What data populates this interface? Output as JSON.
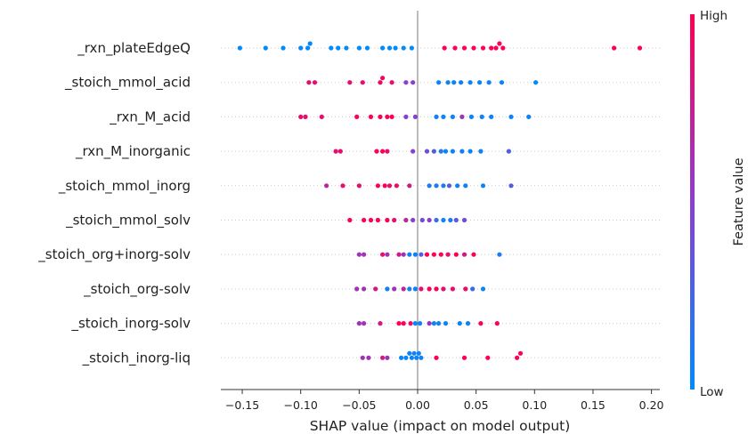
{
  "chart_data": {
    "type": "scatter",
    "subtype": "shap-beeswarm",
    "xlabel": "SHAP value (impact on model output)",
    "xlim": [
      -0.17,
      0.205
    ],
    "xticks": [
      -0.15,
      -0.1,
      -0.05,
      0.0,
      0.05,
      0.1,
      0.15,
      0.2
    ],
    "xtick_labels": [
      "−0.15",
      "−0.10",
      "−0.05",
      "0.00",
      "0.05",
      "0.10",
      "0.15",
      "0.20"
    ],
    "grid": false,
    "zero_line": true,
    "colorbar": {
      "title": "Feature value",
      "high_label": "High",
      "low_label": "Low",
      "high_color": "#ff0052",
      "low_color": "#008bfb"
    },
    "features": [
      {
        "name": "_rxn_plateEdgeQ",
        "points": [
          [
            -0.152,
            0.0
          ],
          [
            -0.13,
            0.0
          ],
          [
            -0.115,
            0.0
          ],
          [
            -0.1,
            0.0
          ],
          [
            -0.094,
            0.0
          ],
          [
            -0.092,
            0.0
          ],
          [
            -0.074,
            0.0
          ],
          [
            -0.068,
            0.0
          ],
          [
            -0.061,
            0.0
          ],
          [
            -0.05,
            0.0
          ],
          [
            -0.043,
            0.0
          ],
          [
            -0.03,
            0.0
          ],
          [
            -0.024,
            0.0
          ],
          [
            -0.019,
            0.0
          ],
          [
            -0.012,
            0.0
          ],
          [
            -0.005,
            0.0
          ],
          [
            0.023,
            1.0
          ],
          [
            0.032,
            1.0
          ],
          [
            0.04,
            1.0
          ],
          [
            0.048,
            1.0
          ],
          [
            0.056,
            1.0
          ],
          [
            0.063,
            1.0
          ],
          [
            0.067,
            1.0
          ],
          [
            0.07,
            1.0
          ],
          [
            0.073,
            1.0
          ],
          [
            0.168,
            1.0
          ],
          [
            0.19,
            1.0
          ]
        ]
      },
      {
        "name": "_stoich_mmol_acid",
        "points": [
          [
            -0.093,
            0.9
          ],
          [
            -0.088,
            0.9
          ],
          [
            -0.058,
            0.9
          ],
          [
            -0.047,
            0.9
          ],
          [
            -0.032,
            0.95
          ],
          [
            -0.03,
            0.95
          ],
          [
            -0.022,
            0.9
          ],
          [
            -0.01,
            0.5
          ],
          [
            -0.004,
            0.5
          ],
          [
            0.018,
            0.05
          ],
          [
            0.026,
            0.05
          ],
          [
            0.031,
            0.05
          ],
          [
            0.037,
            0.05
          ],
          [
            0.045,
            0.05
          ],
          [
            0.053,
            0.05
          ],
          [
            0.061,
            0.05
          ],
          [
            0.072,
            0.05
          ],
          [
            0.101,
            0.0
          ]
        ]
      },
      {
        "name": "_rxn_M_acid",
        "points": [
          [
            -0.1,
            0.9
          ],
          [
            -0.096,
            0.9
          ],
          [
            -0.082,
            0.9
          ],
          [
            -0.052,
            1.0
          ],
          [
            -0.04,
            1.0
          ],
          [
            -0.032,
            1.0
          ],
          [
            -0.026,
            1.0
          ],
          [
            -0.022,
            1.0
          ],
          [
            -0.01,
            0.5
          ],
          [
            -0.002,
            0.5
          ],
          [
            0.016,
            0.05
          ],
          [
            0.022,
            0.05
          ],
          [
            0.03,
            0.05
          ],
          [
            0.038,
            0.6
          ],
          [
            0.046,
            0.05
          ],
          [
            0.055,
            0.05
          ],
          [
            0.063,
            0.05
          ],
          [
            0.08,
            0.05
          ],
          [
            0.095,
            0.05
          ]
        ]
      },
      {
        "name": "_rxn_M_inorganic",
        "points": [
          [
            -0.07,
            0.9
          ],
          [
            -0.066,
            0.9
          ],
          [
            -0.035,
            1.0
          ],
          [
            -0.03,
            1.0
          ],
          [
            -0.026,
            0.9
          ],
          [
            -0.004,
            0.5
          ],
          [
            0.008,
            0.4
          ],
          [
            0.014,
            0.3
          ],
          [
            0.02,
            0.1
          ],
          [
            0.024,
            0.05
          ],
          [
            0.03,
            0.05
          ],
          [
            0.038,
            0.05
          ],
          [
            0.045,
            0.05
          ],
          [
            0.054,
            0.05
          ],
          [
            0.078,
            0.3
          ]
        ]
      },
      {
        "name": "_stoich_mmol_inorg",
        "points": [
          [
            -0.078,
            0.7
          ],
          [
            -0.064,
            0.9
          ],
          [
            -0.05,
            0.9
          ],
          [
            -0.034,
            1.0
          ],
          [
            -0.028,
            1.0
          ],
          [
            -0.024,
            0.9
          ],
          [
            -0.018,
            0.9
          ],
          [
            -0.007,
            0.8
          ],
          [
            0.01,
            0.1
          ],
          [
            0.016,
            0.1
          ],
          [
            0.022,
            0.1
          ],
          [
            0.027,
            0.3
          ],
          [
            0.034,
            0.05
          ],
          [
            0.041,
            0.05
          ],
          [
            0.056,
            0.05
          ],
          [
            0.08,
            0.3
          ]
        ]
      },
      {
        "name": "_stoich_mmol_solv",
        "points": [
          [
            -0.058,
            1.0
          ],
          [
            -0.046,
            1.0
          ],
          [
            -0.04,
            1.0
          ],
          [
            -0.034,
            1.0
          ],
          [
            -0.026,
            1.0
          ],
          [
            -0.02,
            0.9
          ],
          [
            -0.01,
            0.7
          ],
          [
            -0.004,
            0.5
          ],
          [
            0.004,
            0.4
          ],
          [
            0.01,
            0.5
          ],
          [
            0.016,
            0.2
          ],
          [
            0.022,
            0.05
          ],
          [
            0.028,
            0.1
          ],
          [
            0.033,
            0.3
          ],
          [
            0.04,
            0.4
          ]
        ]
      },
      {
        "name": "_stoich_org+inorg-solv",
        "points": [
          [
            -0.05,
            0.6
          ],
          [
            -0.046,
            0.6
          ],
          [
            -0.03,
            0.9
          ],
          [
            -0.026,
            0.6
          ],
          [
            -0.016,
            0.8
          ],
          [
            -0.012,
            0.6
          ],
          [
            -0.007,
            0.05
          ],
          [
            -0.002,
            0.05
          ],
          [
            0.003,
            0.3
          ],
          [
            0.008,
            1.0
          ],
          [
            0.014,
            1.0
          ],
          [
            0.02,
            1.0
          ],
          [
            0.026,
            0.9
          ],
          [
            0.033,
            1.0
          ],
          [
            0.04,
            0.8
          ],
          [
            0.048,
            1.0
          ],
          [
            0.07,
            0.1
          ]
        ]
      },
      {
        "name": "_stoich_org-solv",
        "points": [
          [
            -0.052,
            0.6
          ],
          [
            -0.046,
            0.6
          ],
          [
            -0.036,
            0.8
          ],
          [
            -0.026,
            0.05
          ],
          [
            -0.02,
            0.6
          ],
          [
            -0.012,
            0.7
          ],
          [
            -0.007,
            0.05
          ],
          [
            -0.002,
            0.05
          ],
          [
            0.003,
            0.9
          ],
          [
            0.01,
            1.0
          ],
          [
            0.016,
            1.0
          ],
          [
            0.022,
            0.9
          ],
          [
            0.03,
            0.9
          ],
          [
            0.041,
            0.9
          ],
          [
            0.047,
            0.2
          ],
          [
            0.056,
            0.05
          ]
        ]
      },
      {
        "name": "_stoich_inorg-solv",
        "points": [
          [
            -0.05,
            0.6
          ],
          [
            -0.046,
            0.6
          ],
          [
            -0.032,
            0.8
          ],
          [
            -0.016,
            1.0
          ],
          [
            -0.012,
            1.0
          ],
          [
            -0.006,
            0.9
          ],
          [
            -0.002,
            0.05
          ],
          [
            0.002,
            0.05
          ],
          [
            0.01,
            0.6
          ],
          [
            0.014,
            0.05
          ],
          [
            0.018,
            0.05
          ],
          [
            0.024,
            0.05
          ],
          [
            0.036,
            0.05
          ],
          [
            0.043,
            0.05
          ],
          [
            0.054,
            1.0
          ],
          [
            0.068,
            1.0
          ]
        ]
      },
      {
        "name": "_stoich_inorg-liq",
        "points": [
          [
            -0.047,
            0.6
          ],
          [
            -0.042,
            0.6
          ],
          [
            -0.03,
            0.8
          ],
          [
            -0.026,
            0.6
          ],
          [
            -0.014,
            0.05
          ],
          [
            -0.01,
            0.05
          ],
          [
            -0.007,
            0.05
          ],
          [
            -0.005,
            0.05
          ],
          [
            -0.003,
            0.05
          ],
          [
            -0.001,
            0.05
          ],
          [
            0.001,
            0.05
          ],
          [
            0.003,
            0.05
          ],
          [
            0.016,
            1.0
          ],
          [
            0.04,
            1.0
          ],
          [
            0.06,
            1.0
          ],
          [
            0.085,
            1.0
          ],
          [
            0.088,
            1.0
          ]
        ]
      }
    ]
  }
}
